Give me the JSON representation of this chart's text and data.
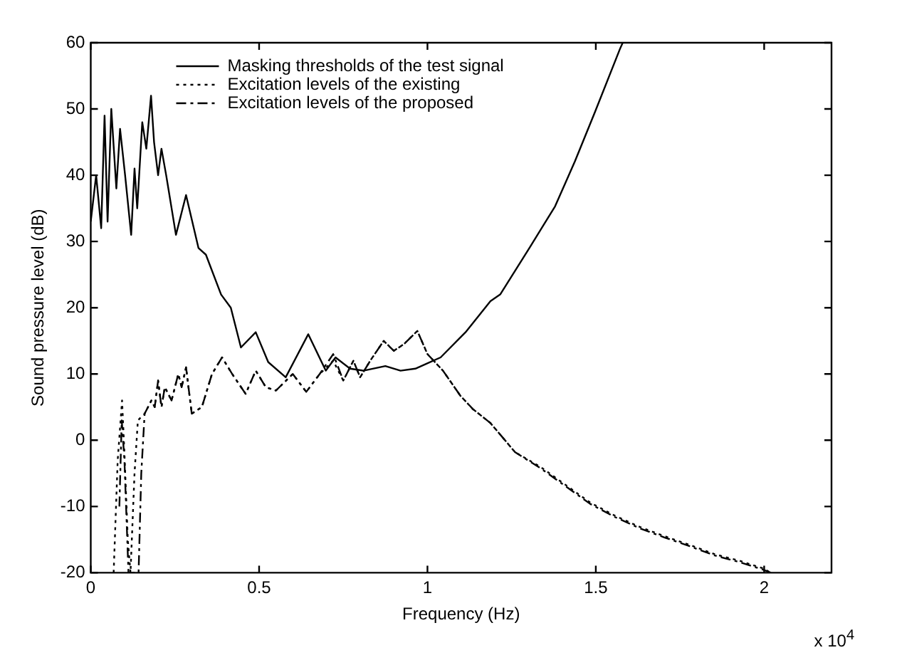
{
  "chart_data": {
    "type": "line",
    "xlabel": "Frequency (Hz)",
    "ylabel": "Sound pressure level (dB)",
    "annotations": [
      "x 10$^{4}$"
    ],
    "xlim": [
      0,
      2.2
    ],
    "ylim": [
      -20,
      60
    ],
    "xticks": [
      0,
      0.5,
      1,
      1.5,
      2
    ],
    "yticks": [
      -20,
      -10,
      0,
      10,
      20,
      30,
      40,
      50,
      60
    ],
    "legend": "top left",
    "series": [
      {
        "name": "Masking thresholds of the test signal",
        "color": "#000000",
        "line_style": "solid",
        "x": [
          0,
          0.016,
          0.031,
          0.041,
          0.05,
          0.061,
          0.076,
          0.087,
          0.102,
          0.12,
          0.13,
          0.138,
          0.153,
          0.165,
          0.179,
          0.188,
          0.2,
          0.21,
          0.224,
          0.253,
          0.283,
          0.32,
          0.342,
          0.387,
          0.416,
          0.446,
          0.49,
          0.527,
          0.579,
          0.646,
          0.698,
          0.727,
          0.77,
          0.81,
          0.875,
          0.92,
          0.964,
          1.039,
          1.113,
          1.187,
          1.216,
          1.305,
          1.379,
          1.438,
          1.498,
          1.572,
          1.58
        ],
        "values": [
          33,
          40,
          32,
          49,
          33,
          50,
          38,
          47,
          40,
          31,
          41,
          35,
          48,
          44,
          52,
          45,
          40,
          44,
          40,
          31,
          37,
          29,
          28,
          22,
          20,
          14,
          16.3,
          11.8,
          9.5,
          16,
          10.5,
          12.5,
          10.8,
          10.5,
          11.2,
          10.5,
          10.8,
          12.5,
          16.3,
          21,
          22,
          29.2,
          35.3,
          42.1,
          49.6,
          59.1,
          60
        ]
      },
      {
        "name": "Excitation levels of the existing",
        "color": "#000000",
        "line_style": "dotted",
        "x": [
          0.068,
          0.08,
          0.093,
          0.1,
          0.11,
          0.118,
          0.13,
          0.14,
          0.16,
          0.18,
          0.19,
          0.2,
          0.21,
          0.22,
          0.24,
          0.26,
          0.27,
          0.283,
          0.3,
          0.33,
          0.36,
          0.39,
          0.42,
          0.46,
          0.49,
          0.52,
          0.55,
          0.6,
          0.64,
          0.68,
          0.72,
          0.75,
          0.78,
          0.8,
          0.83,
          0.87,
          0.9,
          0.93,
          0.97,
          1.0,
          1.046,
          1.098,
          1.135,
          1.187,
          1.26,
          1.335,
          1.409,
          1.483,
          1.557,
          1.631,
          1.705,
          1.779,
          1.853,
          1.927,
          1.994,
          2.02
        ],
        "values": [
          -20,
          -3,
          6,
          -2,
          -15,
          -20,
          -5,
          3,
          4,
          6,
          5,
          9,
          5,
          8,
          6,
          10,
          8,
          11,
          4,
          5,
          10,
          12.5,
          10,
          7,
          10.5,
          8,
          7.5,
          10,
          7.3,
          10,
          12,
          9,
          12,
          9.5,
          12,
          15,
          13.5,
          14.5,
          16.5,
          13,
          10.5,
          6.7,
          4.7,
          2.6,
          -1.8,
          -4,
          -6.7,
          -9.4,
          -11.4,
          -13.1,
          -14.5,
          -15.8,
          -17.2,
          -18.2,
          -19.3,
          -20
        ]
      },
      {
        "name": "Excitation levels of the proposed",
        "color": "#000000",
        "line_style": "dashed",
        "x": [
          0.085,
          0.092,
          0.1,
          0.112,
          0.142,
          0.15,
          0.16,
          0.18,
          0.19,
          0.2,
          0.21,
          0.22,
          0.24,
          0.26,
          0.27,
          0.283,
          0.3,
          0.33,
          0.36,
          0.39,
          0.42,
          0.46,
          0.49,
          0.52,
          0.55,
          0.6,
          0.64,
          0.68,
          0.72,
          0.75,
          0.78,
          0.8,
          0.83,
          0.87,
          0.9,
          0.93,
          0.97,
          1.0,
          1.046,
          1.098,
          1.135,
          1.187,
          1.26,
          1.335,
          1.409,
          1.483,
          1.557,
          1.631,
          1.705,
          1.779,
          1.853,
          1.927,
          1.994,
          2.02
        ],
        "values": [
          -10,
          3,
          -3,
          -20,
          -20,
          -5,
          4,
          6,
          5,
          9,
          5,
          8,
          6,
          10,
          8,
          11,
          4,
          5,
          10,
          12.5,
          10,
          7,
          10.5,
          8,
          7.5,
          10,
          7.3,
          10,
          13,
          9,
          12,
          9.5,
          12,
          15,
          13.5,
          14.5,
          16.5,
          13,
          10.5,
          6.7,
          4.7,
          2.6,
          -1.8,
          -4.2,
          -6.9,
          -9.6,
          -11.6,
          -13.3,
          -14.7,
          -16,
          -17.4,
          -18.4,
          -19.5,
          -20
        ]
      }
    ]
  }
}
